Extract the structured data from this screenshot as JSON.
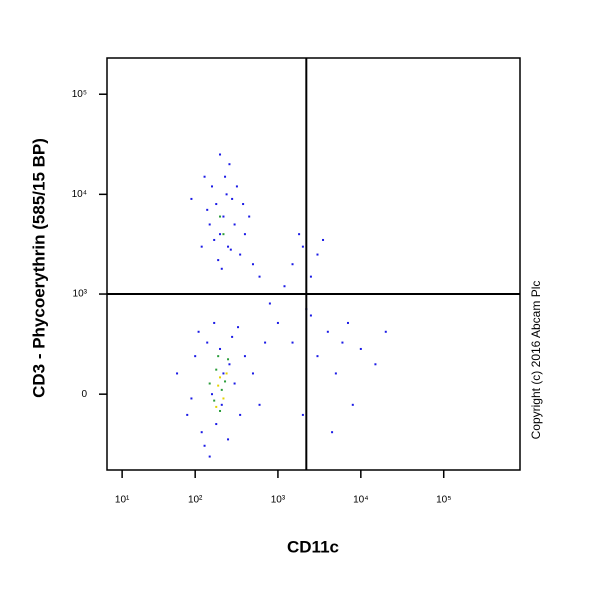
{
  "chart_data": {
    "type": "scatter",
    "x_label": "CD11c",
    "y_label": "CD3 - Phycoerythrin (585/15 BP)",
    "annotation": "Copyright (c) 2016 Abcam Plc",
    "xscale": "biexponential",
    "yscale": "biexponential",
    "xlim": [
      3.8,
      832000
    ],
    "ylim": [
      -560,
      230000
    ],
    "xticks": [
      {
        "value": 10,
        "label": "10¹"
      },
      {
        "value": 100,
        "label": "10²"
      },
      {
        "value": 1000,
        "label": "10³"
      },
      {
        "value": 10000,
        "label": "10⁴"
      },
      {
        "value": 100000,
        "label": "10⁵"
      }
    ],
    "yticks": [
      0,
      {
        "value": 1000,
        "label": "10³"
      },
      {
        "value": 10000,
        "label": "10⁴"
      },
      {
        "value": 100000,
        "label": "10⁵"
      }
    ],
    "gates": {
      "x": 2200,
      "y": 1000
    },
    "series": [
      {
        "color": "#1a1ae6",
        "x": [
          120,
          150,
          180,
          200,
          220,
          250,
          300,
          350,
          160,
          230,
          280,
          190,
          400,
          140,
          260,
          320,
          210,
          170,
          240,
          450,
          90,
          130,
          380,
          270,
          200,
          60,
          80,
          100,
          120,
          140,
          160,
          180,
          200,
          220,
          250,
          280,
          300,
          350,
          400,
          500,
          600,
          110,
          130,
          170,
          210,
          260,
          330,
          90,
          700,
          150,
          1500,
          2000,
          2500,
          3000,
          1800,
          3500,
          1200,
          2200,
          800,
          1000,
          1500,
          2000,
          3000,
          4000,
          5000,
          6000,
          8000,
          10000,
          15000,
          20000,
          4500,
          2500,
          7000,
          600,
          500
        ],
        "y": [
          3000,
          5000,
          8000,
          4000,
          6000,
          3000,
          5000,
          2500,
          12000,
          15000,
          9000,
          2200,
          4000,
          7000,
          20000,
          12000,
          1800,
          3500,
          10000,
          6000,
          9000,
          15000,
          8000,
          2800,
          25000,
          100,
          -100,
          200,
          -200,
          300,
          0,
          -150,
          250,
          100,
          -250,
          350,
          50,
          -100,
          200,
          100,
          -50,
          400,
          -300,
          500,
          -50,
          150,
          450,
          -20,
          300,
          -400,
          2000,
          3000,
          1500,
          2500,
          4000,
          3500,
          1200,
          700,
          800,
          500,
          300,
          -100,
          200,
          400,
          100,
          300,
          -50,
          250,
          150,
          400,
          -200,
          600,
          500,
          1500,
          2000
        ]
      },
      {
        "color": "#2a9d3a",
        "x": [
          150,
          180,
          200,
          230,
          250,
          190,
          210,
          170,
          220,
          200
        ],
        "y": [
          50,
          120,
          -80,
          60,
          180,
          200,
          20,
          -30,
          4000,
          6000
        ]
      },
      {
        "color": "#e6d200",
        "x": [
          200,
          220,
          240,
          190,
          180
        ],
        "y": [
          80,
          -20,
          100,
          40,
          -60
        ]
      }
    ]
  }
}
